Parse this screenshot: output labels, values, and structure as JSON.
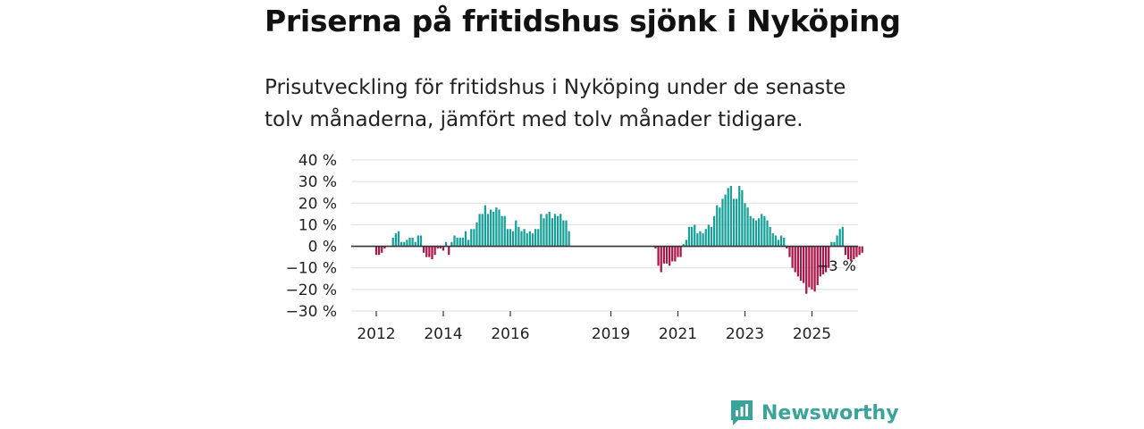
{
  "header": {
    "title": "Priserna på fritidshus sjönk i Nyköping",
    "subtitle": "Prisutveckling för fritidshus i Nyköping under de senaste tolv månaderna, jämfört med tolv månader tidigare."
  },
  "brand": {
    "name": "Newsworthy",
    "icon": "newsworthy-logo-icon"
  },
  "colors": {
    "positive": "#17a098",
    "negative": "#a8164a",
    "grid": "#dddddd",
    "zero_line": "#333333",
    "brand": "#3aa39a"
  },
  "chart_data": {
    "type": "bar",
    "title": "Priserna på fritidshus sjönk i Nyköping",
    "xlabel": "",
    "ylabel": "",
    "ylim": [
      -30,
      40
    ],
    "y_ticks": [
      40,
      30,
      20,
      10,
      0,
      -10,
      -20,
      -30
    ],
    "y_tick_labels": [
      "40 %",
      "30 %",
      "20 %",
      "10 %",
      "0 %",
      "−10 %",
      "−20 %",
      "−30 %"
    ],
    "x_ticks": [
      2012,
      2014,
      2016,
      2019,
      2021,
      2023,
      2025
    ],
    "x_tick_labels": [
      "2012",
      "2014",
      "2016",
      "2019",
      "2021",
      "2023",
      "2025"
    ],
    "x_start": 2012.0,
    "step_years": 0.08333,
    "grid": true,
    "annotation": "−3 %",
    "values": [
      -4,
      -4,
      -3,
      -1,
      0,
      0,
      4,
      6,
      7,
      2,
      2,
      3,
      4,
      4,
      2,
      5,
      5,
      -3,
      -5,
      -5,
      -6,
      -4,
      -1,
      -1,
      -2,
      2,
      -4,
      2,
      5,
      4,
      4,
      4,
      7,
      3,
      8,
      8,
      11,
      15,
      15,
      19,
      15,
      17,
      16,
      18,
      17,
      14,
      14,
      8,
      8,
      7,
      12,
      9,
      7,
      8,
      6,
      7,
      6,
      8,
      8,
      15,
      13,
      15,
      16,
      13,
      15,
      14,
      15,
      12,
      12,
      7,
      0,
      0,
      0,
      0,
      0,
      0,
      0,
      0,
      0,
      0,
      0,
      0,
      0,
      0,
      0,
      0,
      0,
      0,
      0,
      0,
      0,
      0,
      0,
      0,
      0,
      0,
      0,
      0,
      0,
      0,
      -1,
      -9,
      -12,
      -8,
      -8,
      -9,
      -7,
      -7,
      -5,
      -5,
      1,
      3,
      9,
      9,
      10,
      6,
      7,
      6,
      8,
      10,
      9,
      14,
      19,
      18,
      22,
      24,
      27,
      28,
      22,
      22,
      28,
      26,
      20,
      18,
      14,
      13,
      12,
      13,
      15,
      14,
      12,
      9,
      6,
      5,
      3,
      5,
      4,
      -1,
      -5,
      -10,
      -12,
      -14,
      -16,
      -17,
      -22,
      -19,
      -20,
      -21,
      -18,
      -14,
      -13,
      -12,
      -10,
      2,
      2,
      5,
      8,
      9,
      -4,
      -6,
      -7,
      -6,
      -5,
      -4,
      -3
    ]
  }
}
